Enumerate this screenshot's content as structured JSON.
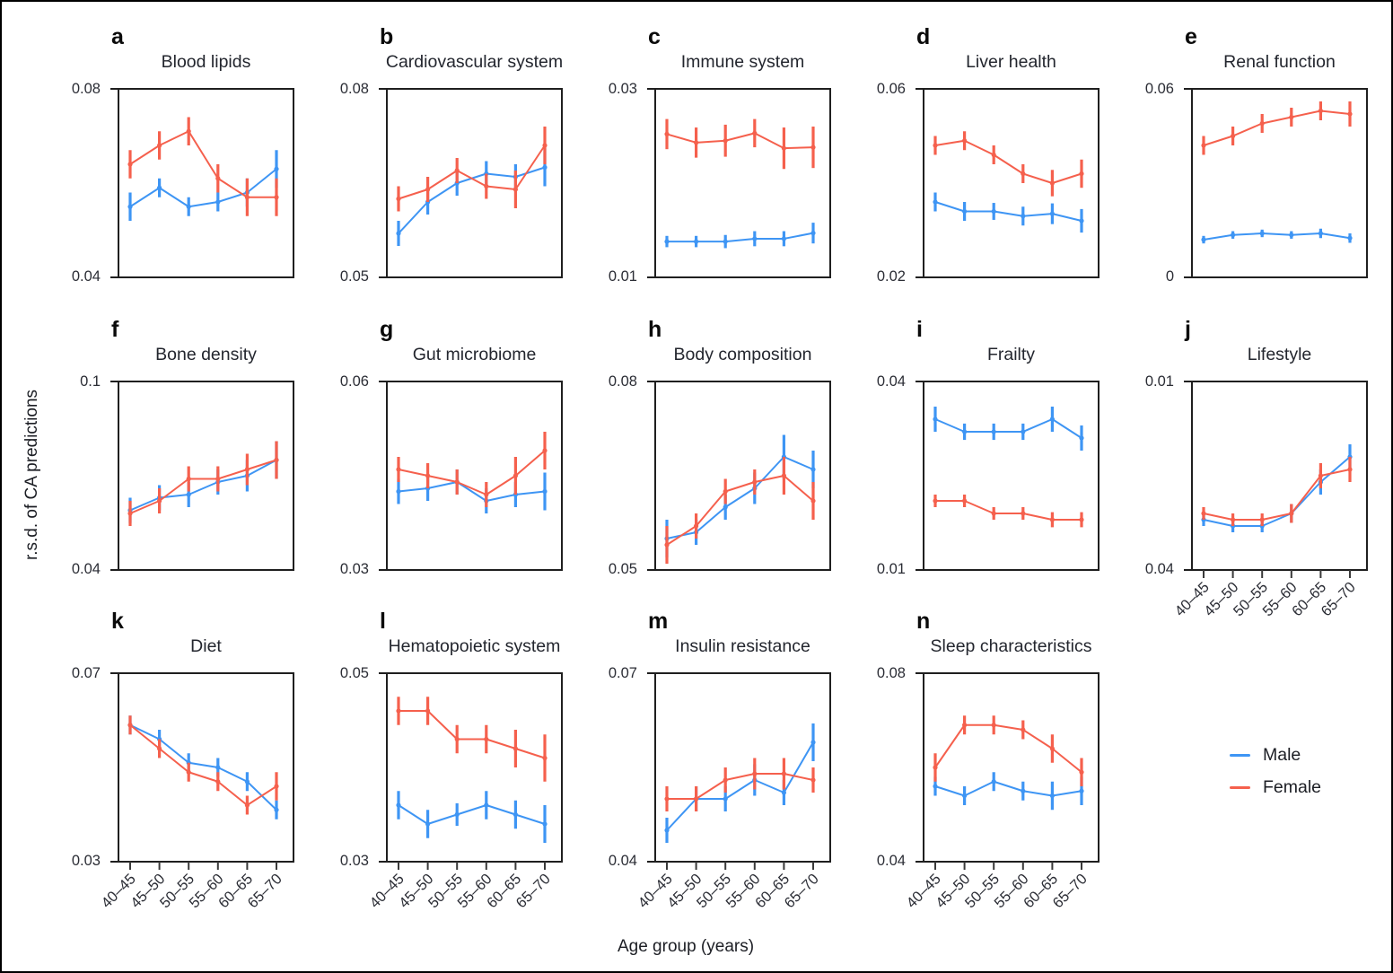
{
  "figure": {
    "ylabel": "r.s.d. of CA predictions",
    "xlabel": "Age group (years)",
    "colors": {
      "male": "#3e95f4",
      "female": "#f5604d",
      "axis": "#1f1f1f",
      "tick": "#3a3a3a"
    },
    "legend": {
      "items": [
        {
          "label": "Male",
          "color_key": "male"
        },
        {
          "label": "Female",
          "color_key": "female"
        }
      ]
    }
  },
  "chart_data": {
    "type": "line",
    "x_categories": [
      "40–45",
      "45–50",
      "50–55",
      "55–60",
      "60–65",
      "65–70"
    ],
    "xlabel": "Age group (years)",
    "ylabel": "r.s.d. of CA predictions",
    "legend_position": "bottom-right",
    "error_bars": true,
    "panels": [
      {
        "letter": "a",
        "title": "Blood lipids",
        "ticks": [
          "0.08",
          "0.04"
        ],
        "series": [
          {
            "name": "Male",
            "values": [
              0.055,
              0.059,
              0.055,
              0.056,
              0.058,
              0.063
            ],
            "err": [
              0.003,
              0.002,
              0.002,
              0.002,
              0.003,
              0.004
            ]
          },
          {
            "name": "Female",
            "values": [
              0.064,
              0.068,
              0.071,
              0.061,
              0.057,
              0.057
            ],
            "err": [
              0.003,
              0.003,
              0.003,
              0.003,
              0.004,
              0.004
            ]
          }
        ]
      },
      {
        "letter": "b",
        "title": "Cardiovascular system",
        "ticks": [
          "0.08",
          "0.05"
        ],
        "series": [
          {
            "name": "Male",
            "values": [
              0.057,
              0.062,
              0.065,
              0.0665,
              0.066,
              0.0675
            ],
            "err": [
              0.002,
              0.002,
              0.002,
              0.002,
              0.002,
              0.003
            ]
          },
          {
            "name": "Female",
            "values": [
              0.0625,
              0.064,
              0.067,
              0.0645,
              0.064,
              0.071
            ],
            "err": [
              0.002,
              0.002,
              0.002,
              0.002,
              0.003,
              0.003
            ]
          }
        ]
      },
      {
        "letter": "c",
        "title": "Immune system",
        "ticks": [
          "0.03",
          "0.01"
        ],
        "series": [
          {
            "name": "Male",
            "values": [
              0.0138,
              0.0138,
              0.0138,
              0.0141,
              0.0141,
              0.0147
            ],
            "err": [
              0.0006,
              0.0006,
              0.0007,
              0.0008,
              0.0008,
              0.0011
            ]
          },
          {
            "name": "Female",
            "values": [
              0.0252,
              0.0243,
              0.0245,
              0.0253,
              0.0237,
              0.0238
            ],
            "err": [
              0.0016,
              0.0016,
              0.0017,
              0.0015,
              0.0022,
              0.0022
            ]
          }
        ]
      },
      {
        "letter": "d",
        "title": "Liver health",
        "ticks": [
          "0.06",
          "0.02"
        ],
        "series": [
          {
            "name": "Male",
            "values": [
              0.036,
              0.034,
              0.034,
              0.033,
              0.0335,
              0.032
            ],
            "err": [
              0.002,
              0.002,
              0.0018,
              0.002,
              0.0022,
              0.0025
            ]
          },
          {
            "name": "Female",
            "values": [
              0.048,
              0.049,
              0.046,
              0.042,
              0.04,
              0.042
            ],
            "err": [
              0.002,
              0.002,
              0.002,
              0.002,
              0.0028,
              0.003
            ]
          }
        ]
      },
      {
        "letter": "e",
        "title": "Renal function",
        "ticks": [
          "0.06",
          "0"
        ],
        "series": [
          {
            "name": "Male",
            "values": [
              0.012,
              0.0135,
              0.014,
              0.0135,
              0.014,
              0.0125
            ],
            "err": [
              0.0012,
              0.0012,
              0.0012,
              0.0012,
              0.0015,
              0.0015
            ]
          },
          {
            "name": "Female",
            "values": [
              0.042,
              0.045,
              0.049,
              0.051,
              0.053,
              0.052
            ],
            "err": [
              0.003,
              0.003,
              0.003,
              0.003,
              0.003,
              0.004
            ]
          }
        ]
      },
      {
        "letter": "f",
        "title": "Bone density",
        "ticks": [
          "0.1",
          "0.04"
        ],
        "series": [
          {
            "name": "Male",
            "values": [
              0.059,
              0.063,
              0.064,
              0.068,
              0.07,
              0.075
            ],
            "err": [
              0.004,
              0.004,
              0.004,
              0.004,
              0.005,
              0.006
            ]
          },
          {
            "name": "Female",
            "values": [
              0.058,
              0.062,
              0.069,
              0.069,
              0.072,
              0.075
            ],
            "err": [
              0.004,
              0.004,
              0.004,
              0.004,
              0.005,
              0.006
            ]
          }
        ]
      },
      {
        "letter": "g",
        "title": "Gut microbiome",
        "ticks": [
          "0.06",
          "0.03"
        ],
        "series": [
          {
            "name": "Male",
            "values": [
              0.0425,
              0.043,
              0.044,
              0.041,
              0.042,
              0.0425
            ],
            "err": [
              0.002,
              0.002,
              0.002,
              0.002,
              0.002,
              0.003
            ]
          },
          {
            "name": "Female",
            "values": [
              0.046,
              0.045,
              0.044,
              0.042,
              0.045,
              0.049
            ],
            "err": [
              0.002,
              0.002,
              0.002,
              0.002,
              0.003,
              0.003
            ]
          }
        ]
      },
      {
        "letter": "h",
        "title": "Body composition",
        "ticks": [
          "0.08",
          "0.05"
        ],
        "series": [
          {
            "name": "Male",
            "values": [
              0.055,
              0.056,
              0.06,
              0.063,
              0.068,
              0.066
            ],
            "err": [
              0.003,
              0.002,
              0.002,
              0.0025,
              0.0035,
              0.003
            ]
          },
          {
            "name": "Female",
            "values": [
              0.054,
              0.057,
              0.0625,
              0.064,
              0.065,
              0.061
            ],
            "err": [
              0.003,
              0.002,
              0.002,
              0.002,
              0.003,
              0.003
            ]
          }
        ]
      },
      {
        "letter": "i",
        "title": "Frailty",
        "ticks": [
          "0.04",
          "0.01"
        ],
        "series": [
          {
            "name": "Male",
            "values": [
              0.034,
              0.032,
              0.032,
              0.032,
              0.034,
              0.031
            ],
            "err": [
              0.002,
              0.0013,
              0.0013,
              0.0013,
              0.002,
              0.002
            ]
          },
          {
            "name": "Female",
            "values": [
              0.021,
              0.021,
              0.019,
              0.019,
              0.018,
              0.018
            ],
            "err": [
              0.001,
              0.001,
              0.001,
              0.001,
              0.0012,
              0.0012
            ]
          }
        ]
      },
      {
        "letter": "j",
        "title": "Lifestyle",
        "ticks": [
          "0.01",
          "0.04"
        ],
        "series": [
          {
            "name": "Male",
            "values": [
              0.032,
              0.033,
              0.033,
              0.031,
              0.026,
              0.022
            ],
            "err": [
              0.001,
              0.001,
              0.001,
              0.0015,
              0.002,
              0.002
            ]
          },
          {
            "name": "Female",
            "values": [
              0.031,
              0.032,
              0.032,
              0.031,
              0.025,
              0.024
            ],
            "err": [
              0.001,
              0.001,
              0.001,
              0.0015,
              0.002,
              0.002
            ]
          }
        ]
      },
      {
        "letter": "k",
        "title": "Diet",
        "ticks": [
          "0.07",
          "0.03"
        ],
        "series": [
          {
            "name": "Male",
            "values": [
              0.059,
              0.056,
              0.051,
              0.05,
              0.047,
              0.041
            ],
            "err": [
              0.002,
              0.002,
              0.002,
              0.002,
              0.002,
              0.002
            ]
          },
          {
            "name": "Female",
            "values": [
              0.059,
              0.054,
              0.049,
              0.047,
              0.042,
              0.046
            ],
            "err": [
              0.002,
              0.002,
              0.002,
              0.002,
              0.002,
              0.003
            ]
          }
        ]
      },
      {
        "letter": "l",
        "title": "Hematopoietic system",
        "ticks": [
          "0.05",
          "0.03"
        ],
        "series": [
          {
            "name": "Male",
            "values": [
              0.036,
              0.034,
              0.035,
              0.036,
              0.035,
              0.034
            ],
            "err": [
              0.0015,
              0.0015,
              0.0012,
              0.0015,
              0.0015,
              0.002
            ]
          },
          {
            "name": "Female",
            "values": [
              0.046,
              0.046,
              0.043,
              0.043,
              0.042,
              0.041
            ],
            "err": [
              0.0015,
              0.0015,
              0.0015,
              0.0015,
              0.002,
              0.0025
            ]
          }
        ]
      },
      {
        "letter": "m",
        "title": "Insulin resistance",
        "ticks": [
          "0.07",
          "0.04"
        ],
        "series": [
          {
            "name": "Male",
            "values": [
              0.045,
              0.05,
              0.05,
              0.053,
              0.051,
              0.059
            ],
            "err": [
              0.002,
              0.002,
              0.002,
              0.0025,
              0.002,
              0.003
            ]
          },
          {
            "name": "Female",
            "values": [
              0.05,
              0.05,
              0.053,
              0.054,
              0.054,
              0.053
            ],
            "err": [
              0.002,
              0.002,
              0.002,
              0.0025,
              0.0025,
              0.002
            ]
          }
        ]
      },
      {
        "letter": "n",
        "title": "Sleep characteristics",
        "ticks": [
          "0.08",
          "0.04"
        ],
        "series": [
          {
            "name": "Male",
            "values": [
              0.056,
              0.054,
              0.057,
              0.055,
              0.054,
              0.055
            ],
            "err": [
              0.002,
              0.002,
              0.002,
              0.002,
              0.003,
              0.003
            ]
          },
          {
            "name": "Female",
            "values": [
              0.06,
              0.069,
              0.069,
              0.068,
              0.064,
              0.059
            ],
            "err": [
              0.003,
              0.002,
              0.002,
              0.002,
              0.003,
              0.003
            ]
          }
        ]
      }
    ]
  }
}
